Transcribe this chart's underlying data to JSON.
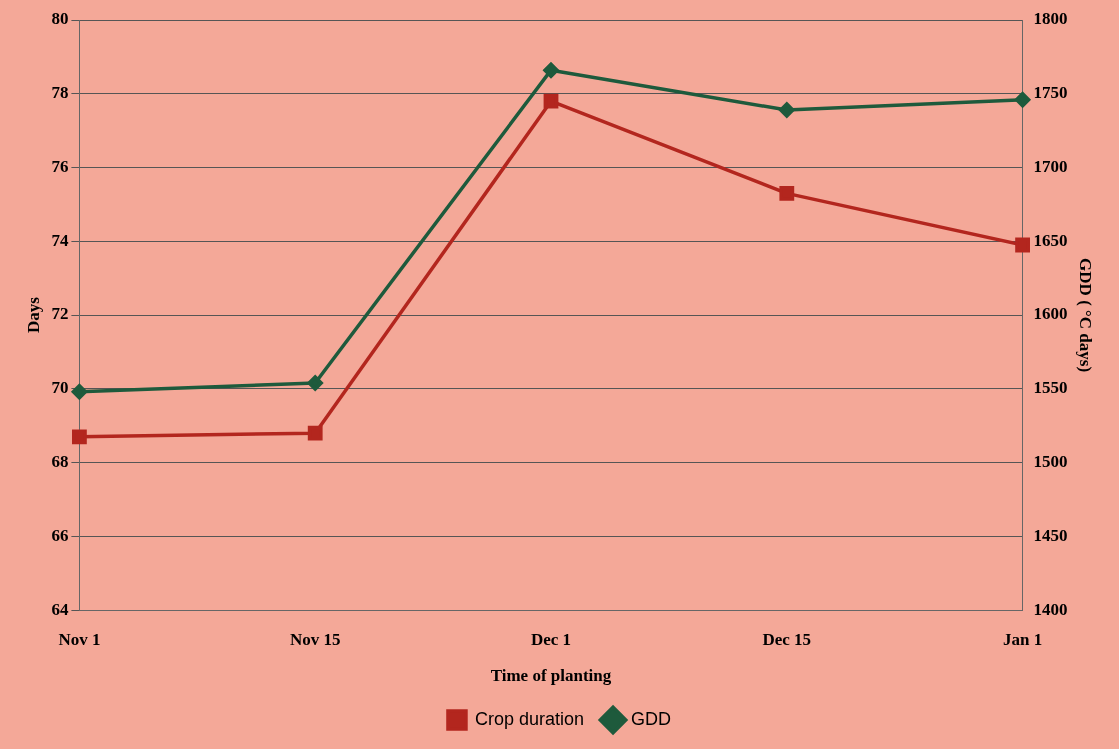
{
  "chart_data": {
    "type": "line",
    "xlabel": "Time of planting",
    "ylabel": "Days",
    "y2label": "GDD ( °C days)",
    "categories": [
      "Nov 1",
      "Nov 15",
      "Dec 1",
      "Dec 15",
      "Jan 1"
    ],
    "series": [
      {
        "name": "Crop duration",
        "color": "#b3261e",
        "marker": "square",
        "values": [
          68.7,
          68.8,
          77.8,
          75.3,
          73.9
        ]
      },
      {
        "name": "GDD",
        "color": "#1e5a3c",
        "marker": "diamond",
        "axis": "y2",
        "values": [
          1548,
          1554,
          1766,
          1739,
          1746
        ]
      }
    ],
    "ylim": [
      64,
      80
    ],
    "yticks": [
      64,
      66,
      68,
      70,
      72,
      74,
      76,
      78,
      80
    ],
    "y2lim": [
      1400,
      1800
    ],
    "y2ticks": [
      1400,
      1450,
      1500,
      1550,
      1600,
      1650,
      1700,
      1750,
      1800
    ],
    "grid": "y",
    "legend": "bottom",
    "line_style": "solid"
  }
}
